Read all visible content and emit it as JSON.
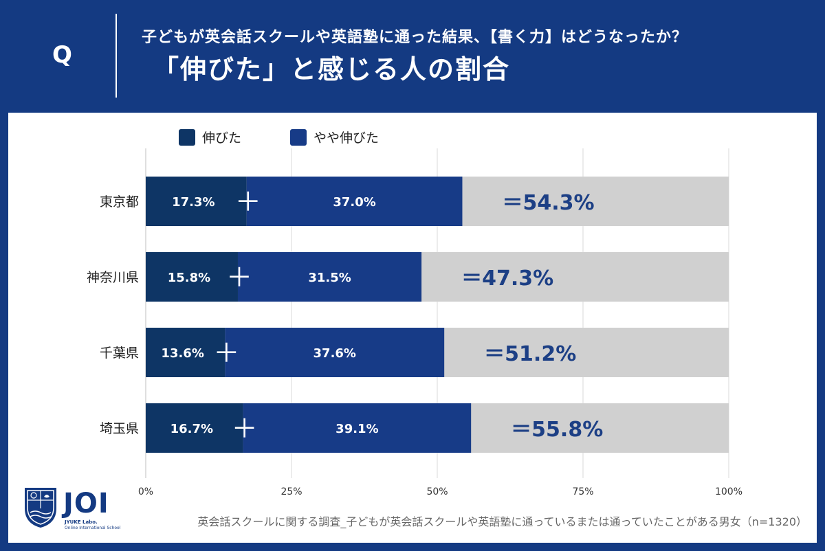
{
  "header": {
    "q_mark": "Q",
    "subtitle": "子どもが英会話スクールや英語塾に通った結果、【書く力】はどうなったか？",
    "title": "「伸びた」と感じる人の割合"
  },
  "logo": {
    "text": "JOI",
    "sub1": "JYUKE Labo.",
    "sub2": "Online International School"
  },
  "footnote": "英会話スクールに関する調査_子どもが英会話スクールや英語塾に通っているまたは通っていたことがある男女（n=1320）",
  "colors": {
    "background": "#143a82",
    "series1": "#0e3565",
    "series2": "#173b87",
    "remainder": "#d0d0d0",
    "total_text": "#1c3f85"
  },
  "chart_data": {
    "type": "bar",
    "orientation": "horizontal",
    "stacked": true,
    "categories": [
      "東京都",
      "神奈川県",
      "千葉県",
      "埼玉県"
    ],
    "series": [
      {
        "name": "伸びた",
        "values": [
          17.3,
          15.8,
          13.6,
          16.7
        ],
        "labels": [
          "17.3%",
          "15.8%",
          "13.6%",
          "16.7%"
        ]
      },
      {
        "name": "やや伸びた",
        "values": [
          37.0,
          31.5,
          37.6,
          39.1
        ],
        "labels": [
          "37.0%",
          "31.5%",
          "37.6%",
          "39.1%"
        ]
      }
    ],
    "totals": [
      54.3,
      47.3,
      51.2,
      55.8
    ],
    "total_labels": [
      "＝54.3%",
      "＝47.3%",
      "＝51.2%",
      "＝55.8%"
    ],
    "plus_sign": "＋",
    "xlim": [
      0,
      100
    ],
    "xticks": [
      0,
      25,
      50,
      75,
      100
    ],
    "xtick_labels": [
      "0%",
      "25%",
      "50%",
      "75%",
      "100%"
    ],
    "grid": "vertical",
    "legend_position": "top-left"
  }
}
